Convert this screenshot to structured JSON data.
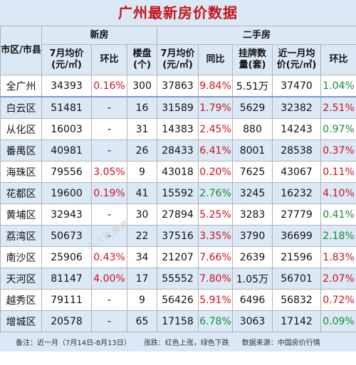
{
  "title": "广州最新房价数据",
  "headers": {
    "district": "市区/市县",
    "new_house": "新房",
    "second_hand": "二手房",
    "new_price": "7月均价\n(元/㎡)",
    "new_mom": "环比",
    "new_projects": "楼盘\n(个)",
    "sh_price": "7月均价\n(元/㎡)",
    "sh_yoy": "同比",
    "sh_listings": "挂牌数\n量(套)",
    "sh_recent_price": "近一月均\n价(元/㎡)",
    "sh_mom": "环比"
  },
  "colors": {
    "up": "#d0101a",
    "down": "#118f2e"
  },
  "rows": [
    {
      "district": "全广州",
      "new_price": "34393",
      "new_mom": "0.16%",
      "new_mom_dir": "up",
      "projects": "300",
      "sh_price": "37863",
      "sh_yoy": "9.84%",
      "sh_yoy_dir": "up",
      "listings": "5.51万",
      "recent_price": "37470",
      "sh_mom": "1.04%",
      "sh_mom_dir": "down"
    },
    {
      "district": "白云区",
      "new_price": "51481",
      "new_mom": "-",
      "new_mom_dir": "",
      "projects": "16",
      "sh_price": "31589",
      "sh_yoy": "1.79%",
      "sh_yoy_dir": "up",
      "listings": "5629",
      "recent_price": "32382",
      "sh_mom": "2.51%",
      "sh_mom_dir": "up"
    },
    {
      "district": "从化区",
      "new_price": "16003",
      "new_mom": "-",
      "new_mom_dir": "",
      "projects": "31",
      "sh_price": "14383",
      "sh_yoy": "2.45%",
      "sh_yoy_dir": "up",
      "listings": "880",
      "recent_price": "14243",
      "sh_mom": "0.97%",
      "sh_mom_dir": "down"
    },
    {
      "district": "番禺区",
      "new_price": "40981",
      "new_mom": "-",
      "new_mom_dir": "",
      "projects": "26",
      "sh_price": "28433",
      "sh_yoy": "6.41%",
      "sh_yoy_dir": "up",
      "listings": "8001",
      "recent_price": "28538",
      "sh_mom": "0.37%",
      "sh_mom_dir": "up"
    },
    {
      "district": "海珠区",
      "new_price": "79556",
      "new_mom": "3.05%",
      "new_mom_dir": "up",
      "projects": "9",
      "sh_price": "43018",
      "sh_yoy": "0.20%",
      "sh_yoy_dir": "up",
      "listings": "7625",
      "recent_price": "43067",
      "sh_mom": "0.11%",
      "sh_mom_dir": "up"
    },
    {
      "district": "花都区",
      "new_price": "19600",
      "new_mom": "0.19%",
      "new_mom_dir": "up",
      "projects": "41",
      "sh_price": "15592",
      "sh_yoy": "2.76%",
      "sh_yoy_dir": "down",
      "listings": "3245",
      "recent_price": "16232",
      "sh_mom": "4.10%",
      "sh_mom_dir": "up"
    },
    {
      "district": "黄埔区",
      "new_price": "32943",
      "new_mom": "-",
      "new_mom_dir": "",
      "projects": "30",
      "sh_price": "27894",
      "sh_yoy": "5.25%",
      "sh_yoy_dir": "up",
      "listings": "3283",
      "recent_price": "27779",
      "sh_mom": "0.41%",
      "sh_mom_dir": "down"
    },
    {
      "district": "荔湾区",
      "new_price": "50673",
      "new_mom": "-",
      "new_mom_dir": "",
      "projects": "22",
      "sh_price": "37516",
      "sh_yoy": "3.35%",
      "sh_yoy_dir": "up",
      "listings": "3790",
      "recent_price": "36699",
      "sh_mom": "2.18%",
      "sh_mom_dir": "down"
    },
    {
      "district": "南沙区",
      "new_price": "25906",
      "new_mom": "0.43%",
      "new_mom_dir": "up",
      "projects": "34",
      "sh_price": "21207",
      "sh_yoy": "7.66%",
      "sh_yoy_dir": "up",
      "listings": "2639",
      "recent_price": "21596",
      "sh_mom": "1.83%",
      "sh_mom_dir": "up"
    },
    {
      "district": "天河区",
      "new_price": "81147",
      "new_mom": "4.00%",
      "new_mom_dir": "up",
      "projects": "17",
      "sh_price": "55552",
      "sh_yoy": "7.80%",
      "sh_yoy_dir": "up",
      "listings": "1.05万",
      "recent_price": "56701",
      "sh_mom": "2.07%",
      "sh_mom_dir": "up"
    },
    {
      "district": "越秀区",
      "new_price": "79111",
      "new_mom": "-",
      "new_mom_dir": "",
      "projects": "9",
      "sh_price": "56426",
      "sh_yoy": "5.91%",
      "sh_yoy_dir": "up",
      "listings": "6496",
      "recent_price": "56832",
      "sh_mom": "0.72%",
      "sh_mom_dir": "up"
    },
    {
      "district": "增城区",
      "new_price": "20578",
      "new_mom": "-",
      "new_mom_dir": "",
      "projects": "65",
      "sh_price": "17158",
      "sh_yoy": "6.78%",
      "sh_yoy_dir": "down",
      "listings": "3063",
      "recent_price": "17142",
      "sh_mom": "0.09%",
      "sh_mom_dir": "down"
    }
  ],
  "footer": {
    "note": "备注：近一月（7月14日-8月13日）",
    "legend": "涨跌：红色上涨，绿色下跌",
    "source": "数据来源：中国房价行情"
  },
  "watermark": "小八说房产"
}
